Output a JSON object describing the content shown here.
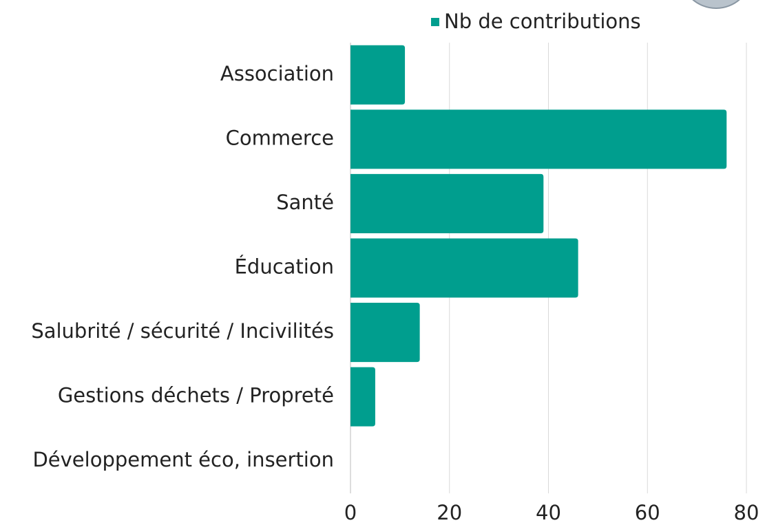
{
  "chart_data": {
    "type": "bar",
    "orientation": "horizontal",
    "categories": [
      "Association",
      "Commerce",
      "Santé",
      "Éducation",
      "Salubrité / sécurité / Incivilités",
      "Gestions déchets / Propreté",
      "Développement éco, insertion"
    ],
    "series": [
      {
        "name": "Nb de contributions",
        "color": "#009e8e",
        "values": [
          11,
          76,
          39,
          46,
          14,
          5,
          0
        ]
      }
    ],
    "xlim": [
      0,
      80
    ],
    "xticks": [
      0,
      20,
      40,
      60,
      80
    ],
    "grid": true,
    "legend": "top"
  }
}
